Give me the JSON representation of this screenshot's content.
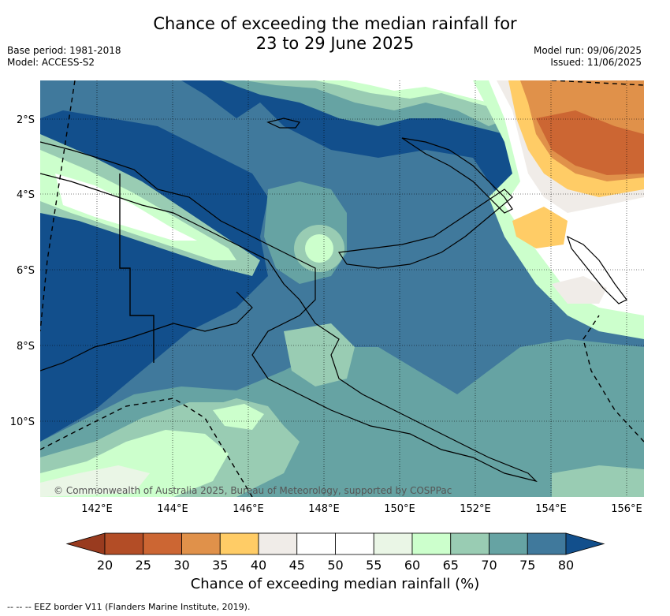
{
  "title_line1": "Chance of exceeding the median rainfall for",
  "title_line2": "23 to 29 June 2025",
  "base_period": "Base period: 1981-2018",
  "model": "Model: ACCESS-S2",
  "model_run": "Model run: 09/06/2025",
  "issued": "Issued: 11/06/2025",
  "copyright": "© Commonwealth of Australia 2025, Bureau of Meteorology, supported by COSPPac",
  "lat_labels": [
    "2°S",
    "4°S",
    "6°S",
    "8°S",
    "10°S"
  ],
  "lon_labels": [
    "142°E",
    "144°E",
    "146°E",
    "148°E",
    "150°E",
    "152°E",
    "154°E",
    "156°E"
  ],
  "colorbar": {
    "title": "Chance of exceeding median rainfall (%)",
    "ticks": [
      "20",
      "25",
      "30",
      "35",
      "40",
      "45",
      "50",
      "55",
      "60",
      "65",
      "70",
      "75",
      "80"
    ],
    "colors": [
      "#b34d26",
      "#cc6633",
      "#e0914a",
      "#ffcc66",
      "#f0ece8",
      "#ffffff",
      "#ffffff",
      "#eaf6e6",
      "#ccffcc",
      "#99ccb3",
      "#66a3a3",
      "#40799c",
      "#124f8c"
    ],
    "under_color": "#993b1f",
    "over_color": "#124f8c"
  },
  "footnote": "-- -- -- EEZ border V11 (Flanders Marine Institute, 2019)."
}
